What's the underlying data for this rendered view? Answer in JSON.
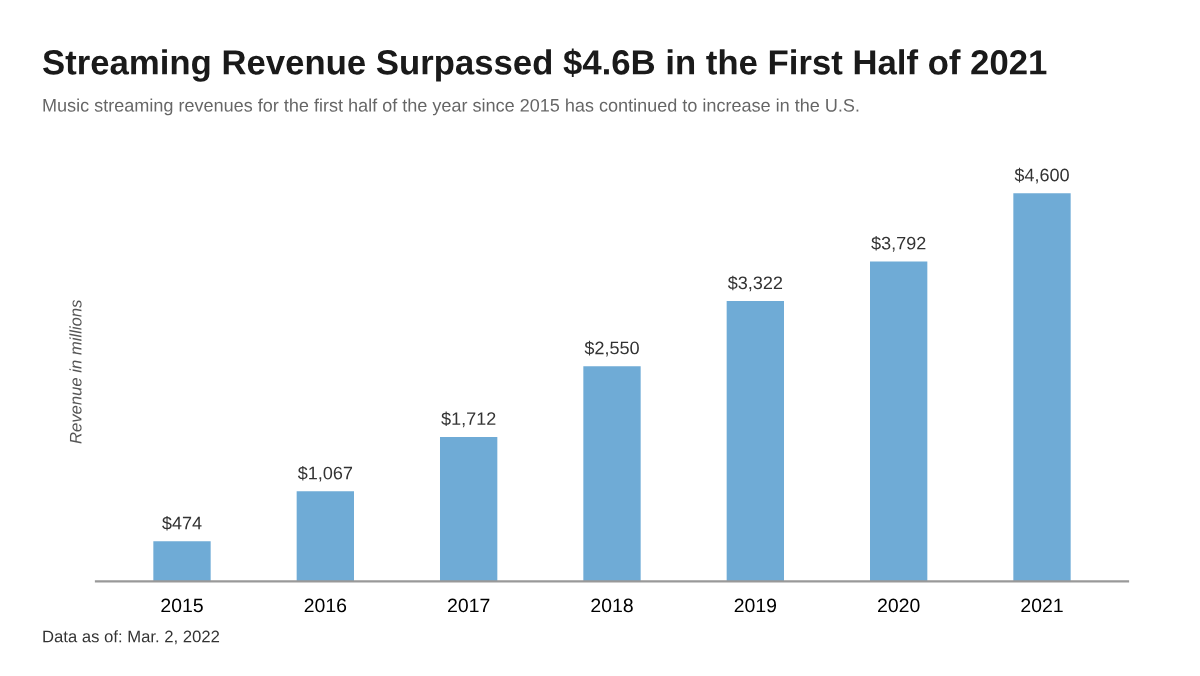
{
  "chart_data": {
    "type": "bar",
    "title": "Streaming Revenue Surpassed $4.6B in the First Half of 2021",
    "subtitle": "Music streaming revenues for the first half of the year since 2015 has continued to increase in the U.S.",
    "ylabel": "Revenue in millions",
    "categories": [
      "2015",
      "2016",
      "2017",
      "2018",
      "2019",
      "2020",
      "2021"
    ],
    "values": [
      474,
      1067,
      1712,
      2550,
      3322,
      3792,
      4600
    ],
    "value_labels": [
      "$474",
      "$1,067",
      "$1,712",
      "$2,550",
      "$3,322",
      "$3,792",
      "$4,600"
    ],
    "color": "#6fabd6",
    "annotations": [
      "Data as of: Mar. 2, 2022"
    ]
  }
}
